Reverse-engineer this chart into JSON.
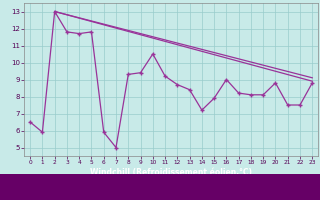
{
  "xlabel": "Windchill (Refroidissement éolien,°C)",
  "bg_color": "#c8eae8",
  "line_color": "#993399",
  "grid_color": "#99cccc",
  "xlabel_bg": "#660066",
  "xlabel_fg": "#ffffff",
  "hours": [
    0,
    1,
    2,
    3,
    4,
    5,
    6,
    7,
    8,
    9,
    10,
    11,
    12,
    13,
    14,
    15,
    16,
    17,
    18,
    19,
    20,
    21,
    22,
    23
  ],
  "windchill": [
    6.5,
    5.9,
    13.0,
    11.8,
    11.7,
    11.8,
    5.9,
    5.0,
    9.3,
    9.4,
    10.5,
    9.2,
    8.7,
    8.4,
    7.2,
    7.9,
    9.0,
    8.2,
    8.1,
    8.1,
    8.8,
    7.5,
    7.5,
    8.8
  ],
  "upper_line_x": [
    2,
    23
  ],
  "upper_line_y": [
    13.0,
    8.9
  ],
  "lower_line_x": [
    2,
    23
  ],
  "lower_line_y": [
    13.0,
    9.1
  ],
  "ylim": [
    4.5,
    13.5
  ],
  "xlim": [
    -0.5,
    23.5
  ],
  "yticks": [
    5,
    6,
    7,
    8,
    9,
    10,
    11,
    12,
    13
  ],
  "xticks": [
    0,
    1,
    2,
    3,
    4,
    5,
    6,
    7,
    8,
    9,
    10,
    11,
    12,
    13,
    14,
    15,
    16,
    17,
    18,
    19,
    20,
    21,
    22,
    23
  ]
}
